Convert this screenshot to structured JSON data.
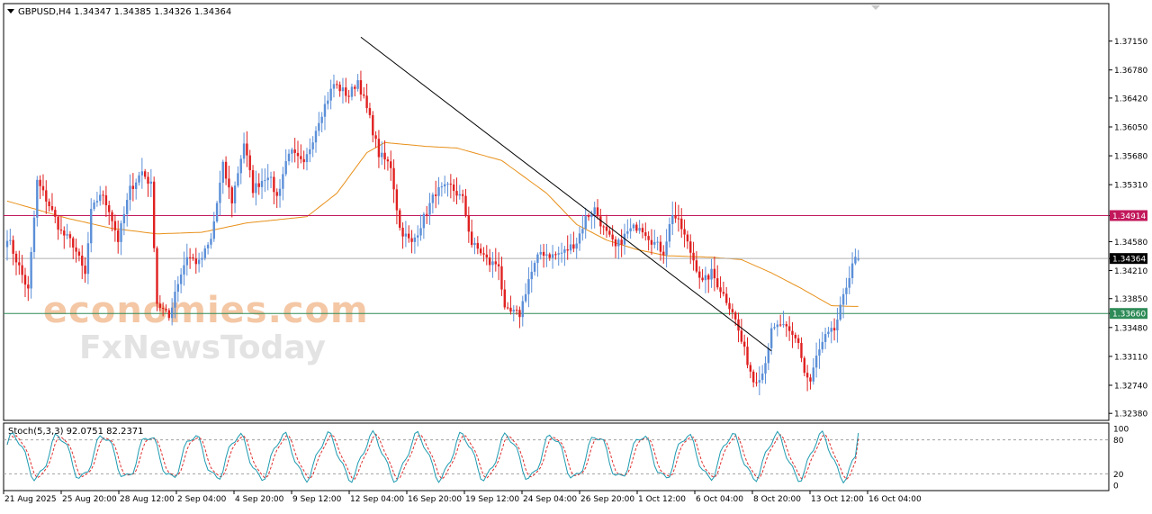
{
  "header": {
    "symbol_line": "GBPUSD,H4  1.34347 1.34385 1.34326 1.34364",
    "indicator_line": "Stoch(5,3,3) 92.0751 82.2371"
  },
  "watermark": {
    "line1": "economies.com",
    "line2": "FxNewsToday"
  },
  "chart_data": [
    {
      "type": "candlestick",
      "symbol": "GBPUSD",
      "timeframe": "H4",
      "ohlc_header": {
        "open": 1.34347,
        "high": 1.34385,
        "low": 1.34326,
        "close": 1.34364
      },
      "y_ticks": [
        "1.37150",
        "1.36780",
        "1.36420",
        "1.36050",
        "1.35680",
        "1.35310",
        "1.34914",
        "1.34580",
        "1.34364",
        "1.34210",
        "1.33850",
        "1.33660",
        "1.33480",
        "1.33110",
        "1.32740",
        "1.32380"
      ],
      "ylim": [
        1.3229,
        1.3763
      ],
      "x_ticks": [
        "21 Aug 2025",
        "25 Aug 20:00",
        "28 Aug 12:00",
        "2 Sep 04:00",
        "4 Sep 20:00",
        "9 Sep 12:00",
        "12 Sep 04:00",
        "16 Sep 20:00",
        "19 Sep 12:00",
        "24 Sep 04:00",
        "26 Sep 20:00",
        "1 Oct 12:00",
        "6 Oct 04:00",
        "8 Oct 20:00",
        "13 Oct 12:00",
        "16 Oct 04:00"
      ],
      "horizontal_lines": [
        {
          "name": "resistance",
          "value": 1.34914,
          "label": "1.34914",
          "color": "#c2185b"
        },
        {
          "name": "current-price",
          "value": 1.34364,
          "label": "1.34364",
          "color": "#b0b0b0"
        },
        {
          "name": "support",
          "value": 1.3366,
          "label": "1.33660",
          "color": "#2e8b57"
        }
      ],
      "trendline": {
        "start": {
          "bar": 118,
          "price": 1.372
        },
        "end": {
          "bar": 255,
          "price": 1.3318
        },
        "color": "#000000"
      },
      "moving_average_color": "#e8901a",
      "candle_colors": {
        "up": "#5b8fd8",
        "down": "#e02020"
      },
      "anchors": [
        [
          0,
          1.3465
        ],
        [
          7,
          1.3395
        ],
        [
          10,
          1.3535
        ],
        [
          14,
          1.3505
        ],
        [
          18,
          1.347
        ],
        [
          22,
          1.3455
        ],
        [
          26,
          1.3415
        ],
        [
          28,
          1.3495
        ],
        [
          31,
          1.352
        ],
        [
          34,
          1.35
        ],
        [
          37,
          1.346
        ],
        [
          41,
          1.3525
        ],
        [
          45,
          1.3548
        ],
        [
          48,
          1.353
        ],
        [
          50,
          1.338
        ],
        [
          54,
          1.336
        ],
        [
          56,
          1.3395
        ],
        [
          60,
          1.344
        ],
        [
          64,
          1.343
        ],
        [
          68,
          1.346
        ],
        [
          72,
          1.3555
        ],
        [
          75,
          1.351
        ],
        [
          79,
          1.3585
        ],
        [
          82,
          1.3525
        ],
        [
          87,
          1.3545
        ],
        [
          90,
          1.3515
        ],
        [
          94,
          1.3575
        ],
        [
          99,
          1.3555
        ],
        [
          104,
          1.3615
        ],
        [
          109,
          1.366
        ],
        [
          114,
          1.3645
        ],
        [
          117,
          1.3665
        ],
        [
          121,
          1.3615
        ],
        [
          124,
          1.357
        ],
        [
          128,
          1.3555
        ],
        [
          131,
          1.3475
        ],
        [
          135,
          1.3455
        ],
        [
          138,
          1.348
        ],
        [
          143,
          1.3522
        ],
        [
          148,
          1.3528
        ],
        [
          152,
          1.3512
        ],
        [
          155,
          1.3455
        ],
        [
          158,
          1.3445
        ],
        [
          161,
          1.343
        ],
        [
          164,
          1.343
        ],
        [
          166,
          1.3368
        ],
        [
          171,
          1.3365
        ],
        [
          174,
          1.341
        ],
        [
          178,
          1.3445
        ],
        [
          182,
          1.344
        ],
        [
          186,
          1.3445
        ],
        [
          190,
          1.3458
        ],
        [
          193,
          1.3488
        ],
        [
          196,
          1.35
        ],
        [
          199,
          1.3474
        ],
        [
          203,
          1.345
        ],
        [
          207,
          1.347
        ],
        [
          211,
          1.348
        ],
        [
          215,
          1.346
        ],
        [
          219,
          1.3445
        ],
        [
          222,
          1.3495
        ],
        [
          225,
          1.3475
        ],
        [
          229,
          1.3435
        ],
        [
          232,
          1.3405
        ],
        [
          235,
          1.3418
        ],
        [
          239,
          1.339
        ],
        [
          242,
          1.337
        ],
        [
          245,
          1.333
        ],
        [
          249,
          1.328
        ],
        [
          252,
          1.329
        ],
        [
          255,
          1.3342
        ],
        [
          258,
          1.3352
        ],
        [
          261,
          1.334
        ],
        [
          264,
          1.333
        ],
        [
          266,
          1.329
        ],
        [
          268,
          1.3278
        ],
        [
          270,
          1.331
        ],
        [
          273,
          1.3335
        ],
        [
          276,
          1.3345
        ],
        [
          279,
          1.3385
        ],
        [
          282,
          1.3432
        ],
        [
          284,
          1.3436
        ]
      ],
      "ma_anchors": [
        [
          0,
          1.351
        ],
        [
          20,
          1.3488
        ],
        [
          35,
          1.3475
        ],
        [
          50,
          1.3468
        ],
        [
          65,
          1.347
        ],
        [
          80,
          1.3482
        ],
        [
          100,
          1.349
        ],
        [
          110,
          1.352
        ],
        [
          120,
          1.3572
        ],
        [
          126,
          1.3585
        ],
        [
          140,
          1.358
        ],
        [
          150,
          1.3578
        ],
        [
          165,
          1.3562
        ],
        [
          180,
          1.352
        ],
        [
          190,
          1.348
        ],
        [
          200,
          1.346
        ],
        [
          210,
          1.3448
        ],
        [
          220,
          1.344
        ],
        [
          235,
          1.3438
        ],
        [
          245,
          1.3435
        ],
        [
          255,
          1.3418
        ],
        [
          265,
          1.3398
        ],
        [
          275,
          1.3376
        ],
        [
          282,
          1.3375
        ]
      ]
    },
    {
      "type": "line",
      "name": "Stoch(5,3,3)",
      "main_last": 92.0751,
      "signal_last": 82.2371,
      "ylim": [
        0,
        100
      ],
      "y_ticks": [
        "100",
        "80",
        "20",
        "0"
      ],
      "levels": [
        80,
        20
      ],
      "main_color": "#1e9bb0",
      "signal_color": "#e03030"
    }
  ]
}
